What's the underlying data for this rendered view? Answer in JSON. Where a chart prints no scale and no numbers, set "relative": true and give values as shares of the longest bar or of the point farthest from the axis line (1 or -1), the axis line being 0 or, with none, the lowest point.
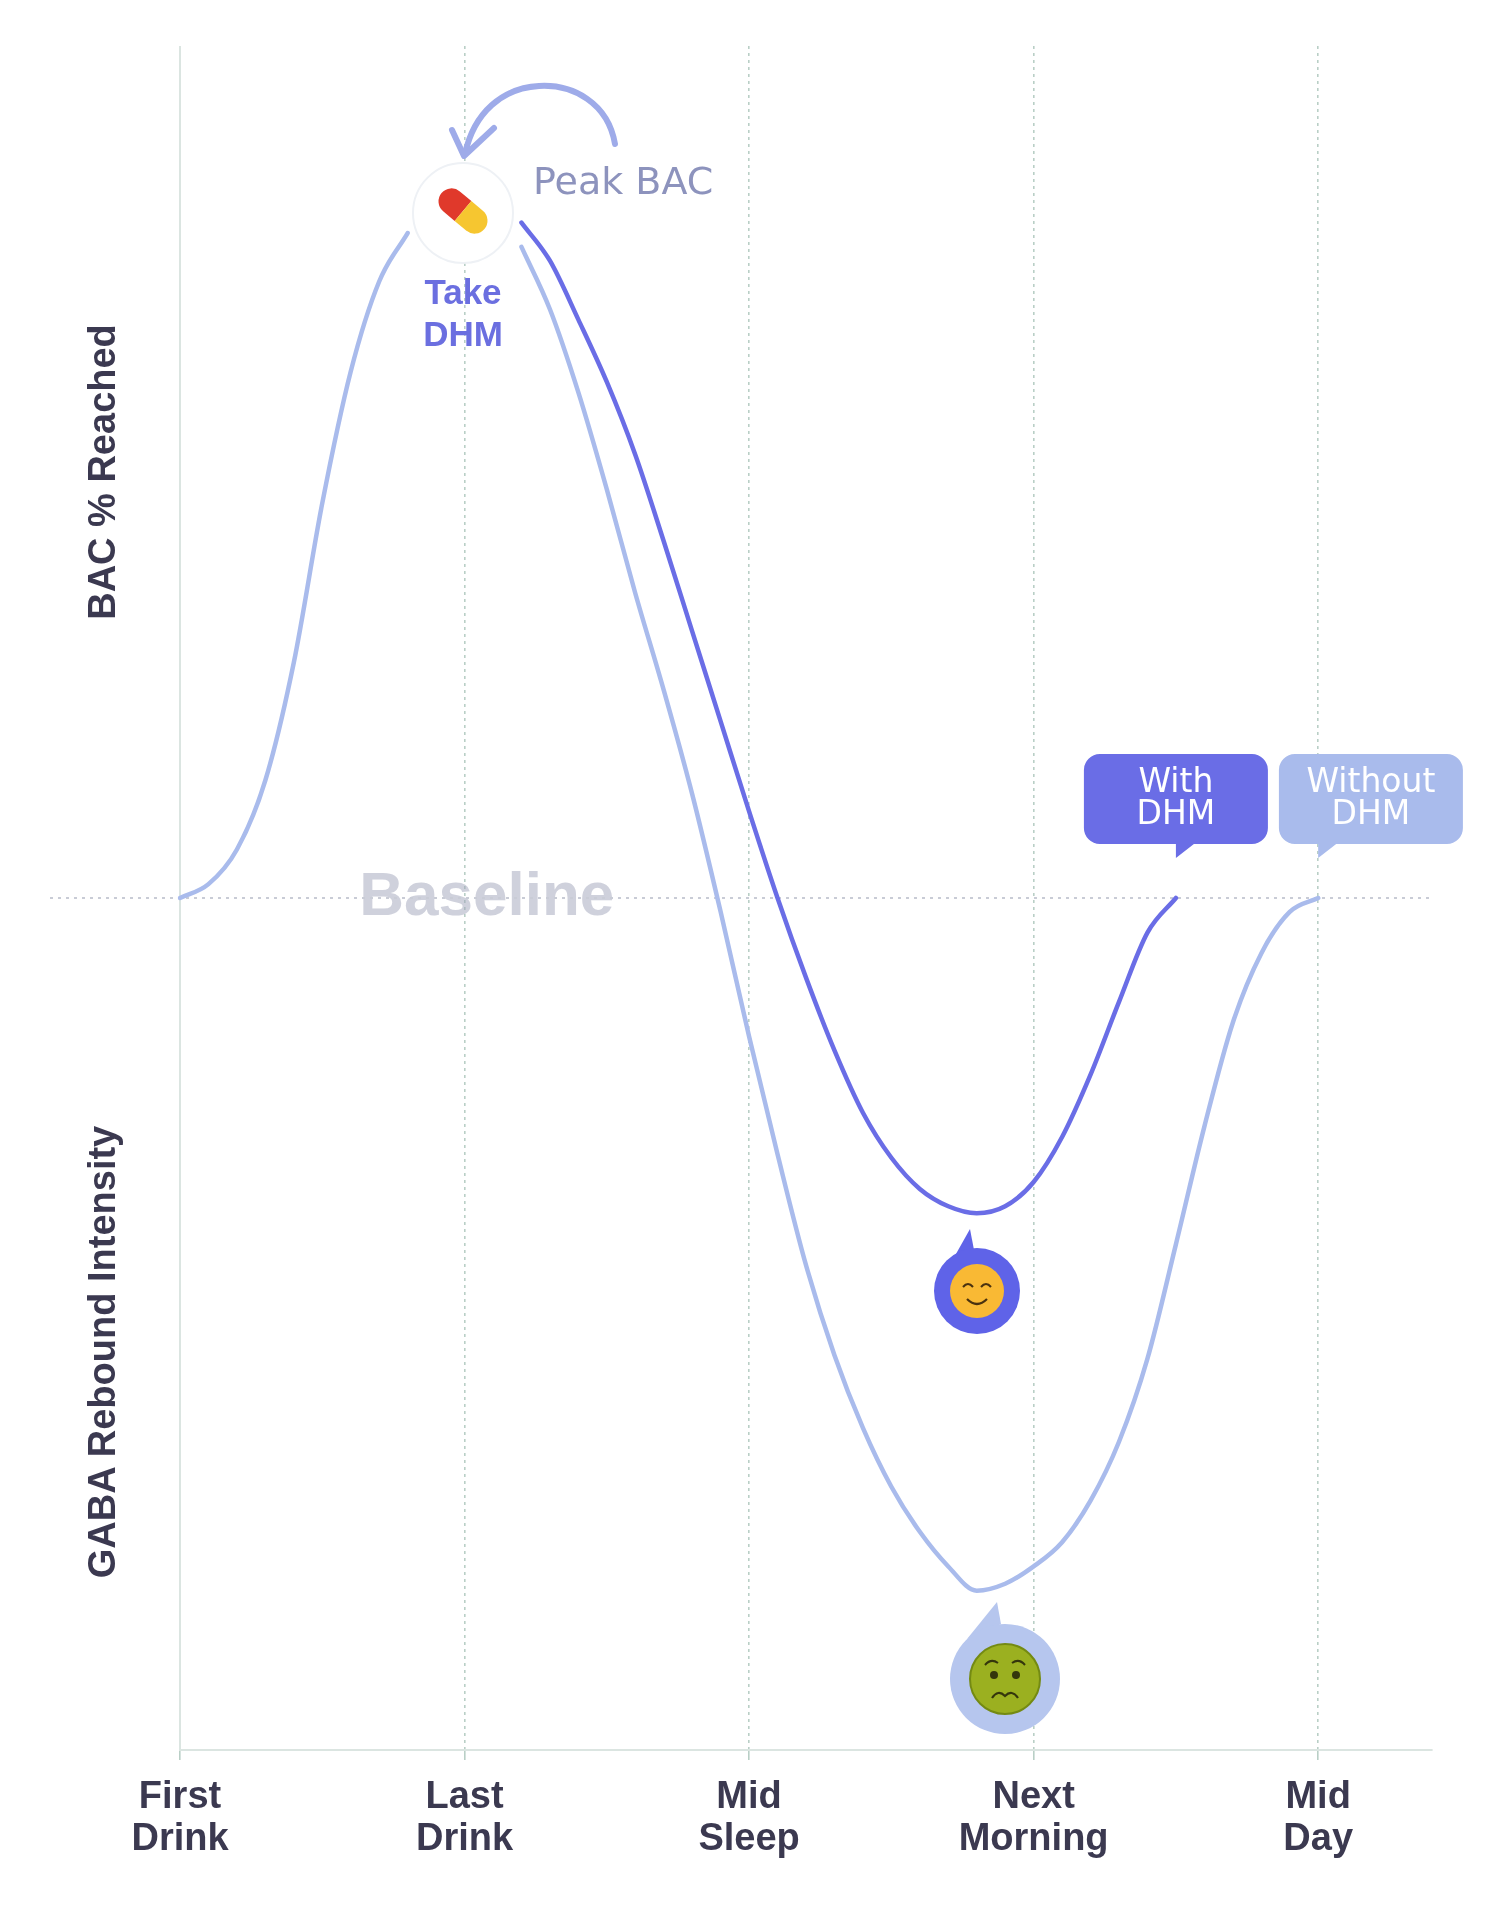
{
  "chart_data": {
    "type": "line",
    "relative": true,
    "ylabel": "BAC % Reached",
    "categories": [
      "First Drink",
      null,
      null,
      null,
      null,
      null,
      null,
      null,
      null,
      null,
      "Last Drink",
      null,
      null,
      null,
      null,
      null,
      null,
      null,
      null,
      null,
      "Mid Sleep",
      null,
      null,
      null,
      null,
      null,
      null,
      null,
      null,
      null,
      "Next Morning",
      null,
      null,
      null,
      null,
      null,
      null,
      null,
      null,
      null,
      "Mid Day",
      null,
      null,
      null,
      null
    ],
    "grid": "x",
    "marker": "none",
    "line_style": "solid",
    "ref_lines": [
      {
        "axis": "y",
        "value": 0,
        "label": "Baseline",
        "color": "#c9ccd6",
        "line_style": "dotted"
      }
    ],
    "annotations": [
      "Peak BAC",
      "Take DHM",
      "GABA Rebound Intensity"
    ],
    "series": [
      {
        "name": "With DHM",
        "color": "#6a6de6",
        "values": [
          null,
          null,
          null,
          null,
          null,
          null,
          null,
          null,
          null,
          null,
          null,
          null,
          0.975,
          0.92,
          0.835,
          0.745,
          0.64,
          0.515,
          0.385,
          0.255,
          0.125,
          0,
          -0.115,
          -0.22,
          -0.31,
          -0.375,
          -0.42,
          -0.445,
          -0.455,
          -0.445,
          -0.41,
          -0.345,
          -0.255,
          -0.15,
          -0.05,
          0,
          null,
          null,
          null,
          null,
          null,
          null,
          null,
          null,
          null
        ]
      },
      {
        "name": "Without DHM",
        "color": "#a9bbec",
        "values": [
          0,
          0.02,
          0.07,
          0.17,
          0.34,
          0.57,
          0.76,
          0.89,
          0.96,
          null,
          null,
          null,
          0.94,
          0.85,
          0.73,
          0.59,
          0.44,
          0.3,
          0.15,
          -0.02,
          -0.2,
          -0.37,
          -0.53,
          -0.66,
          -0.765,
          -0.85,
          -0.915,
          -0.965,
          -1,
          -0.99,
          -0.965,
          -0.93,
          -0.87,
          -0.785,
          -0.665,
          -0.5,
          -0.33,
          -0.18,
          -0.08,
          -0.02,
          0,
          null,
          null,
          null,
          null
        ]
      }
    ]
  }
}
